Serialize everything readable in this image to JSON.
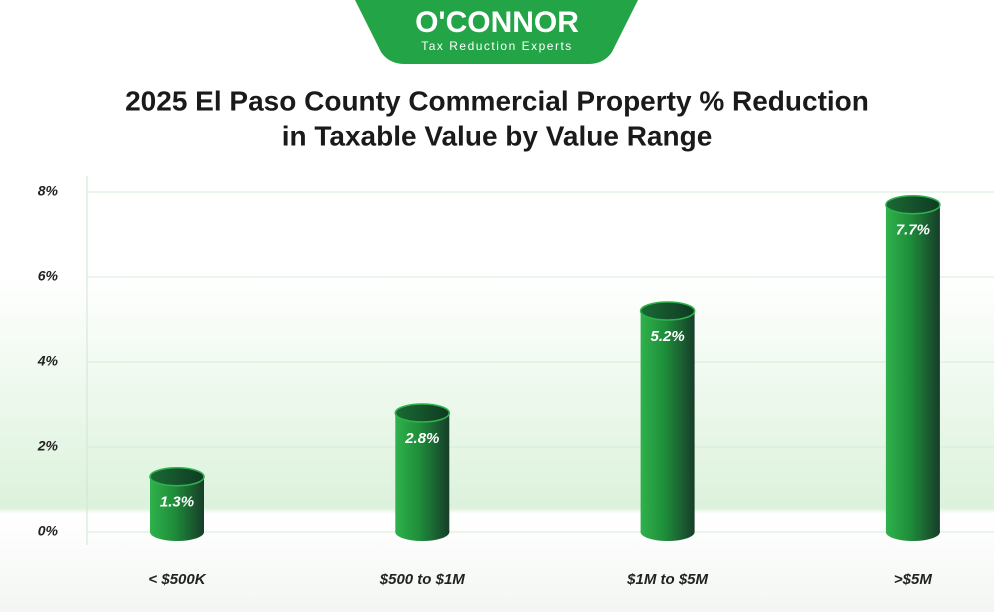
{
  "logo": {
    "name": "O'CONNOR",
    "tagline": "Tax Reduction Experts"
  },
  "chart_data": {
    "type": "bar",
    "title": [
      "2025 El Paso County Commercial Property % Reduction",
      "in Taxable Value by Value Range"
    ],
    "categories": [
      "< $500K",
      "$500 to $1M",
      "$1M to $5M",
      ">$5M"
    ],
    "values": [
      1.3,
      2.8,
      5.2,
      7.7
    ],
    "value_labels": [
      "1.3%",
      "2.8%",
      "5.2%",
      "7.7%"
    ],
    "color": "#1f9a3f",
    "ylim": [
      0,
      8
    ],
    "yticks": [
      {
        "value": 0,
        "label": "0%"
      },
      {
        "value": 2,
        "label": "2%"
      },
      {
        "value": 4,
        "label": "4%"
      },
      {
        "value": 6,
        "label": "6%"
      },
      {
        "value": 8,
        "label": "8%"
      }
    ],
    "grid": true
  }
}
